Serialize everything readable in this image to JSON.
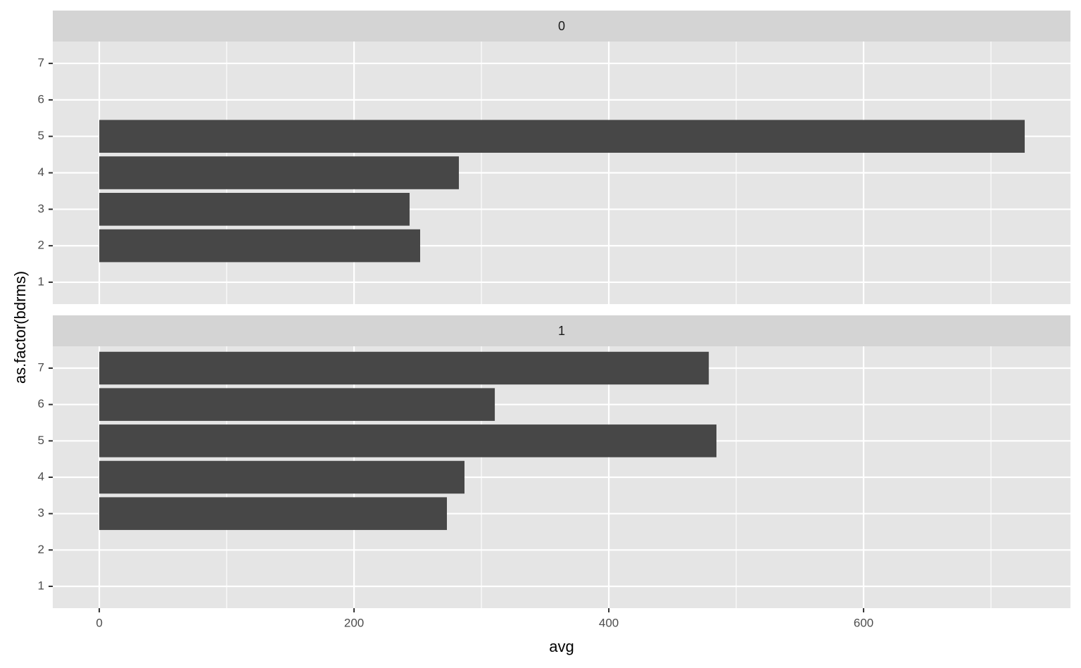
{
  "chart_data": {
    "type": "bar",
    "orientation": "horizontal",
    "x_label": "avg",
    "y_label": "as.factor(bdrms)",
    "xlim": [
      -36.5,
      762.4
    ],
    "xticks": [
      0,
      200,
      400,
      600
    ],
    "minor_xticks": [
      100,
      300,
      500,
      700
    ],
    "grid": true,
    "color": "#474747",
    "facets": [
      {
        "title": "0",
        "categories": [
          "1",
          "2",
          "3",
          "4",
          "5",
          "6",
          "7"
        ],
        "values": [
          null,
          251.9,
          243.6,
          282.3,
          726.5,
          null,
          null
        ]
      },
      {
        "title": "1",
        "categories": [
          "1",
          "2",
          "3",
          "4",
          "5",
          "6",
          "7"
        ],
        "values": [
          null,
          null,
          272.9,
          286.7,
          484.5,
          310.5,
          478.5
        ]
      }
    ]
  }
}
